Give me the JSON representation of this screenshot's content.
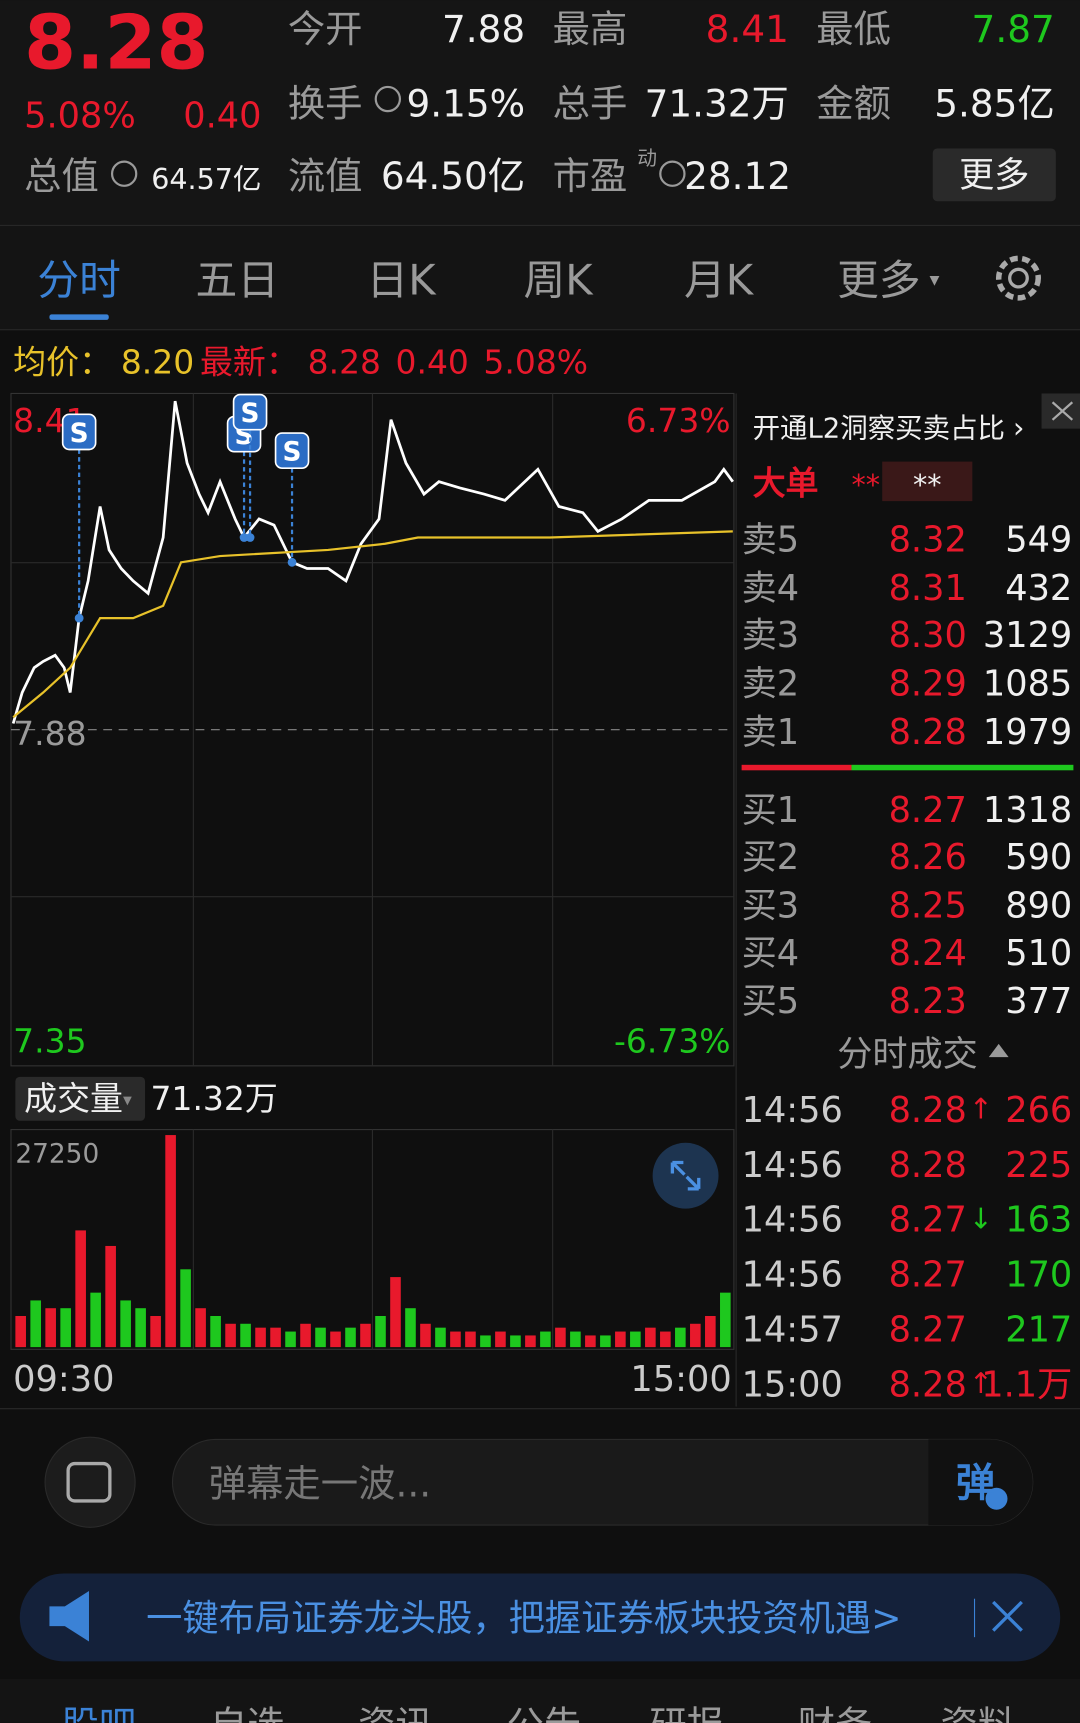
{
  "header": {
    "price": "8.28",
    "change_pct": "5.08%",
    "change": "0.40",
    "fields": [
      {
        "label": "今开",
        "value": "7.88"
      },
      {
        "label": "最高",
        "value": "8.41"
      },
      {
        "label": "最低",
        "value": "7.87"
      },
      {
        "label": "换手",
        "value": "9.15%"
      },
      {
        "label": "总手",
        "value": "71.32万"
      },
      {
        "label": "金额",
        "value": "5.85亿"
      },
      {
        "label": "总值",
        "value": "64.57亿"
      },
      {
        "label": "流值",
        "value": "64.50亿"
      },
      {
        "label": "市盈",
        "value": "28.12"
      }
    ],
    "pe_superscript": "动",
    "more_button": "更多"
  },
  "tabs": [
    "分时",
    "五日",
    "日K",
    "周K",
    "月K",
    "更多"
  ],
  "info_bar": {
    "avg_label": "均价：",
    "avg": "8.20",
    "latest_label": "最新：",
    "latest": "8.28",
    "change": "0.40",
    "change_pct": "5.08%"
  },
  "chart_data": [
    {
      "type": "line",
      "series": [
        {
          "color": "#ffffff",
          "x": [
            0,
            3,
            7,
            10,
            14,
            17,
            19,
            22,
            25,
            29,
            32,
            36,
            40,
            45,
            50,
            54,
            58,
            62,
            65,
            69,
            74,
            77,
            82,
            87,
            93,
            98,
            105,
            111,
            116,
            122,
            126,
            131,
            137,
            142,
            149,
            157,
            164,
            175,
            182,
            190,
            195,
            203,
            212,
            223,
            234,
            237,
            240
          ],
          "values": [
            7.89,
            7.94,
            7.98,
            7.99,
            8.0,
            7.98,
            7.94,
            8.06,
            8.12,
            8.24,
            8.17,
            8.14,
            8.12,
            8.1,
            8.19,
            8.41,
            8.31,
            8.26,
            8.23,
            8.28,
            8.22,
            8.19,
            8.22,
            8.21,
            8.15,
            8.14,
            8.14,
            8.12,
            8.18,
            8.22,
            8.38,
            8.31,
            8.26,
            8.28,
            8.27,
            8.26,
            8.25,
            8.3,
            8.24,
            8.23,
            8.2,
            8.22,
            8.25,
            8.25,
            8.28,
            8.3,
            8.28
          ]
        },
        {
          "color": "#e8c22a",
          "x": [
            0,
            10,
            19,
            29,
            40,
            50,
            56,
            69,
            105,
            124,
            135,
            179,
            240
          ],
          "values": [
            7.9,
            7.94,
            7.98,
            8.06,
            8.06,
            8.08,
            8.15,
            8.16,
            8.17,
            8.18,
            8.19,
            8.19,
            8.2
          ]
        }
      ],
      "xlim": [
        0,
        240
      ],
      "xticks": [
        {
          "value": 0,
          "label": "09:30"
        },
        {
          "value": 240,
          "label": "15:00"
        }
      ],
      "ylim": [
        7.35,
        8.41
      ],
      "yticks": [
        7.35,
        7.88,
        8.41
      ],
      "pct_labels": [
        "6.73%",
        "-6.73%"
      ],
      "signals": [
        {
          "label": "S",
          "x": 22
        },
        {
          "label": "S",
          "x": 77
        },
        {
          "label": "S",
          "x": 79
        },
        {
          "label": "S",
          "x": 93
        }
      ]
    },
    {
      "type": "bar",
      "label": "成交量",
      "total": "71.32万",
      "values": [
        4000,
        6000,
        5000,
        5000,
        15000,
        7000,
        13000,
        6000,
        5000,
        4000,
        27250,
        10000,
        5000,
        4000,
        3000,
        3000,
        2500,
        2500,
        2000,
        3000,
        2500,
        2000,
        2500,
        3000,
        4000,
        9000,
        5000,
        3000,
        2500,
        2000,
        2000,
        1500,
        2000,
        1500,
        1500,
        2000,
        2500,
        2000,
        1500,
        1500,
        2000,
        2000,
        2500,
        2000,
        2500,
        3000,
        4000,
        7000
      ],
      "colors": [
        "#e8192c",
        "#1ec81e",
        "#e8192c",
        "#1ec81e",
        "#e8192c",
        "#1ec81e",
        "#e8192c",
        "#1ec81e",
        "#1ec81e",
        "#e8192c",
        "#e8192c",
        "#1ec81e",
        "#e8192c",
        "#1ec81e",
        "#e8192c",
        "#1ec81e",
        "#e8192c",
        "#e8192c",
        "#1ec81e",
        "#e8192c",
        "#1ec81e",
        "#e8192c",
        "#1ec81e",
        "#e8192c",
        "#1ec81e",
        "#e8192c",
        "#1ec81e",
        "#e8192c",
        "#1ec81e",
        "#e8192c",
        "#e8192c",
        "#1ec81e",
        "#e8192c",
        "#1ec81e",
        "#e8192c",
        "#1ec81e",
        "#e8192c",
        "#1ec81e",
        "#e8192c",
        "#1ec81e",
        "#e8192c",
        "#1ec81e",
        "#e8192c",
        "#e8192c",
        "#1ec81e",
        "#e8192c",
        "#e8192c",
        "#1ec81e"
      ],
      "xlim": [
        0,
        240
      ],
      "ylim": [
        0,
        27250
      ],
      "yticks": [
        27250
      ]
    }
  ],
  "order_book": {
    "l2_link": "开通L2洞察买卖占比",
    "big_order_label": "大单",
    "big_order_values": [
      "**",
      "**"
    ],
    "asks": [
      {
        "label": "卖5",
        "price": "8.32",
        "volume": "549"
      },
      {
        "label": "卖4",
        "price": "8.31",
        "volume": "432"
      },
      {
        "label": "卖3",
        "price": "8.30",
        "volume": "3129"
      },
      {
        "label": "卖2",
        "price": "8.29",
        "volume": "1085"
      },
      {
        "label": "卖1",
        "price": "8.28",
        "volume": "1979"
      }
    ],
    "bids": [
      {
        "label": "买1",
        "price": "8.27",
        "volume": "1318"
      },
      {
        "label": "买2",
        "price": "8.26",
        "volume": "590"
      },
      {
        "label": "买3",
        "price": "8.25",
        "volume": "890"
      },
      {
        "label": "买4",
        "price": "8.24",
        "volume": "510"
      },
      {
        "label": "买5",
        "price": "8.23",
        "volume": "377"
      }
    ]
  },
  "trades": {
    "title": "分时成交",
    "rows": [
      {
        "time": "14:56",
        "price": "8.28",
        "arrow": "↑",
        "volume": "266",
        "color": "red"
      },
      {
        "time": "14:56",
        "price": "8.28",
        "volume": "225",
        "color": "red"
      },
      {
        "time": "14:56",
        "price": "8.27",
        "arrow": "↓",
        "volume": "163",
        "color": "green"
      },
      {
        "time": "14:56",
        "price": "8.27",
        "volume": "170",
        "color": "green"
      },
      {
        "time": "14:57",
        "price": "8.27",
        "volume": "217",
        "color": "green"
      },
      {
        "time": "15:00",
        "price": "8.28",
        "arrow": "↑",
        "volume": "1.1万",
        "color": "red"
      }
    ]
  },
  "comment_bar": {
    "placeholder": "弹幕走一波...",
    "send": "弹"
  },
  "banner": {
    "text": "一键布局证券龙头股，把握证券板块投资机遇>"
  },
  "nav": [
    "股吧",
    "自选",
    "资讯",
    "公告",
    "研报",
    "财务",
    "资料"
  ]
}
